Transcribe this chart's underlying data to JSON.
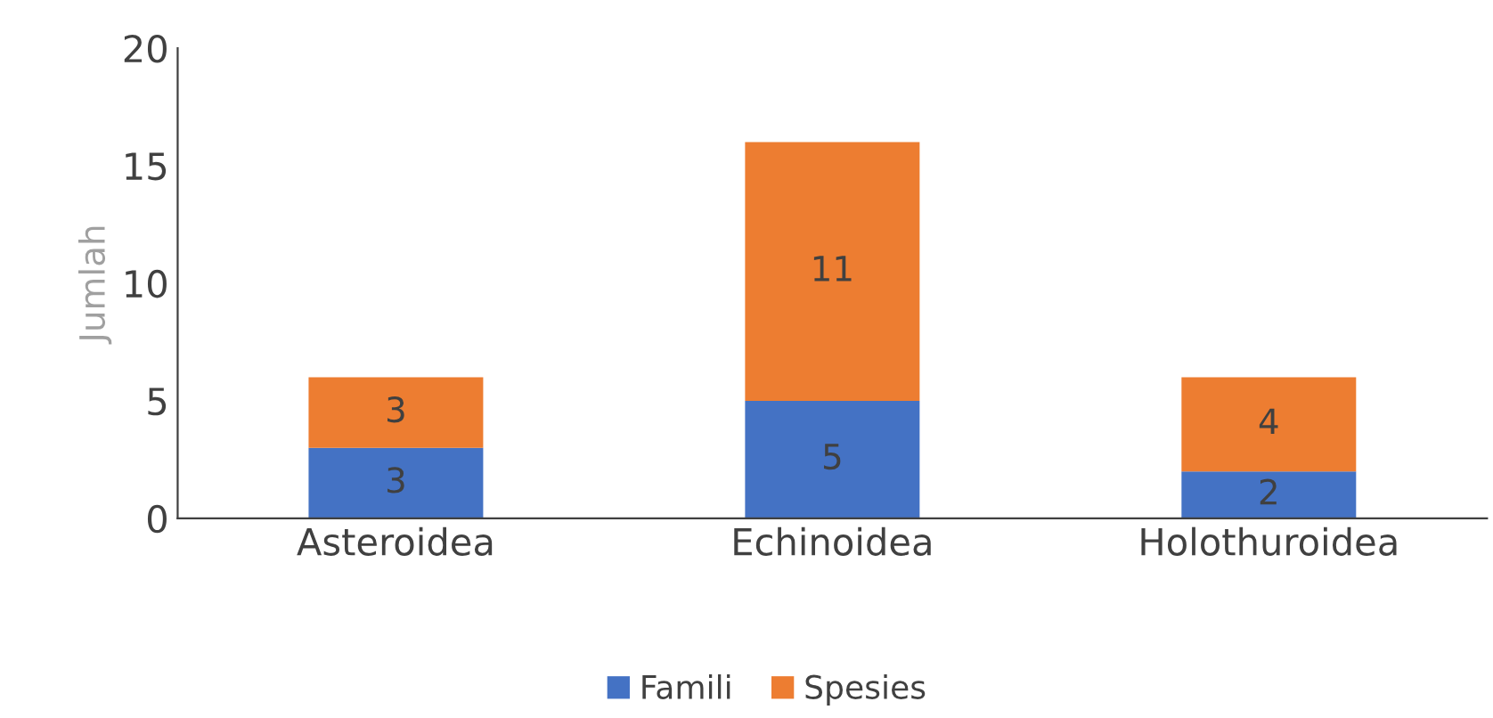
{
  "chart_data": {
    "type": "bar",
    "stacked": true,
    "ylabel": "Jumlah",
    "categories": [
      "Asteroidea",
      "Echinoidea",
      "Holothuroidea"
    ],
    "series": [
      {
        "name": "Famili",
        "color": "#4472c4",
        "values": [
          3,
          5,
          2
        ]
      },
      {
        "name": "Spesies",
        "color": "#ed7d31",
        "values": [
          3,
          11,
          4
        ]
      }
    ],
    "ylim": [
      0,
      20
    ],
    "yticks": [
      0,
      5,
      10,
      15,
      20
    ],
    "grid": false,
    "legend": "bottom",
    "data_labels": true
  }
}
